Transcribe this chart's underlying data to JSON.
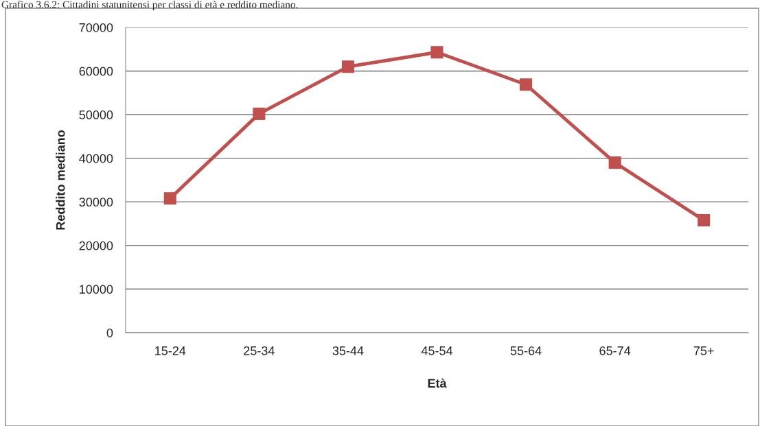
{
  "chart_data": {
    "type": "line",
    "title": "Grafico 3.6.2: Cittadini statunitensi per classi di età e reddito mediano.",
    "xlabel": "Età",
    "ylabel": "Reddito mediano",
    "categories": [
      "15-24",
      "25-34",
      "35-44",
      "45-54",
      "55-64",
      "65-74",
      "75+"
    ],
    "series": [
      {
        "color": "#c0504d",
        "values": [
          30800,
          50200,
          61000,
          64300,
          56900,
          39000,
          25800
        ]
      }
    ],
    "ylim": [
      0,
      70000
    ],
    "yticks": [
      0,
      10000,
      20000,
      30000,
      40000,
      50000,
      60000,
      70000
    ],
    "grid": "y",
    "marker": "square",
    "line_style": "solid",
    "legend": false
  }
}
